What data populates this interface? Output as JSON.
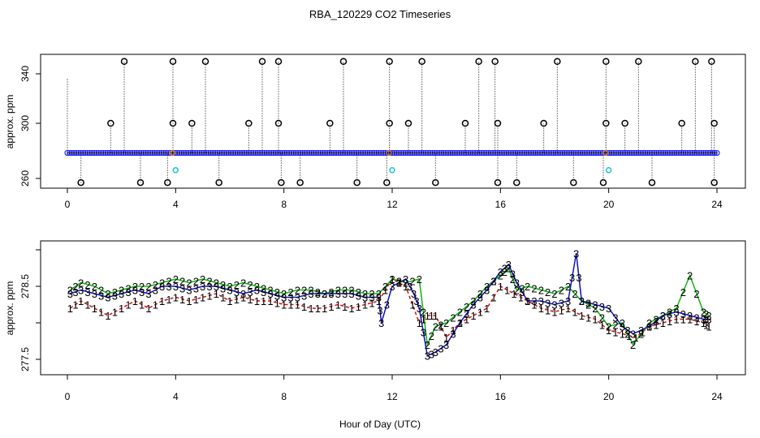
{
  "title": "RBA_120229  CO2 Timeseries",
  "xlabel": "Hour of Day (UTC)",
  "colors": {
    "frame": "#000000",
    "circle_main": "#000000",
    "circle_fill_line": "#1f1fff",
    "circle_cyan": "#20c8d0",
    "series1": "#d01010",
    "series2": "#10b010",
    "series3": "#1010c0",
    "stem": "#000000",
    "orange_mark": "#e08000"
  },
  "chart_data": [
    {
      "type": "scatter",
      "ylabel": "approx. ppm",
      "xlim": [
        0,
        24
      ],
      "ylim": [
        255,
        350
      ],
      "x_ticks": [
        0,
        4,
        8,
        12,
        16,
        20,
        24
      ],
      "y_ticks": [
        260,
        300,
        340
      ],
      "baseline": 278.5,
      "points_high": [
        {
          "x": 2.1,
          "y": 350
        },
        {
          "x": 3.9,
          "y": 350
        },
        {
          "x": 5.1,
          "y": 350
        },
        {
          "x": 7.2,
          "y": 350
        },
        {
          "x": 7.8,
          "y": 350
        },
        {
          "x": 10.2,
          "y": 350
        },
        {
          "x": 11.9,
          "y": 350
        },
        {
          "x": 13.1,
          "y": 350
        },
        {
          "x": 15.2,
          "y": 350
        },
        {
          "x": 15.8,
          "y": 350
        },
        {
          "x": 18.1,
          "y": 350
        },
        {
          "x": 19.9,
          "y": 350
        },
        {
          "x": 21.1,
          "y": 350
        },
        {
          "x": 23.2,
          "y": 350
        },
        {
          "x": 23.8,
          "y": 350
        }
      ],
      "points_mid": [
        {
          "x": 1.6,
          "y": 300
        },
        {
          "x": 3.9,
          "y": 300
        },
        {
          "x": 4.6,
          "y": 300
        },
        {
          "x": 6.7,
          "y": 300
        },
        {
          "x": 7.8,
          "y": 300
        },
        {
          "x": 9.7,
          "y": 300
        },
        {
          "x": 11.9,
          "y": 300
        },
        {
          "x": 12.6,
          "y": 300
        },
        {
          "x": 14.7,
          "y": 300
        },
        {
          "x": 15.9,
          "y": 300
        },
        {
          "x": 17.6,
          "y": 300
        },
        {
          "x": 19.9,
          "y": 300
        },
        {
          "x": 20.6,
          "y": 300
        },
        {
          "x": 22.7,
          "y": 300
        },
        {
          "x": 23.9,
          "y": 300
        }
      ],
      "points_low": [
        {
          "x": 0.5,
          "y": 257
        },
        {
          "x": 2.7,
          "y": 257
        },
        {
          "x": 3.7,
          "y": 257
        },
        {
          "x": 5.6,
          "y": 257
        },
        {
          "x": 7.9,
          "y": 257
        },
        {
          "x": 8.6,
          "y": 257
        },
        {
          "x": 10.7,
          "y": 257
        },
        {
          "x": 11.8,
          "y": 257
        },
        {
          "x": 13.6,
          "y": 257
        },
        {
          "x": 15.9,
          "y": 257
        },
        {
          "x": 16.6,
          "y": 257
        },
        {
          "x": 18.7,
          "y": 257
        },
        {
          "x": 19.8,
          "y": 257
        },
        {
          "x": 21.6,
          "y": 257
        },
        {
          "x": 23.9,
          "y": 257
        }
      ],
      "points_cyan": [
        {
          "x": 4.0,
          "y": 266
        },
        {
          "x": 12.0,
          "y": 266
        },
        {
          "x": 20.0,
          "y": 266
        }
      ]
    },
    {
      "type": "line",
      "ylabel": "approx. ppm",
      "xlim": [
        0,
        24
      ],
      "ylim": [
        277.5,
        279.0
      ],
      "x_ticks": [
        0,
        4,
        8,
        12,
        16,
        20,
        24
      ],
      "y_ticks": [
        277.5,
        278.5
      ],
      "series": [
        {
          "name": "1",
          "x": [
            0.1,
            0.5,
            1.0,
            1.5,
            2.0,
            2.5,
            3.0,
            3.5,
            4.0,
            4.5,
            5.0,
            5.5,
            6.0,
            6.5,
            7.0,
            7.5,
            8.0,
            8.5,
            9.0,
            9.5,
            10.0,
            10.5,
            11.0,
            11.5,
            12.0,
            12.5,
            13.0,
            13.3,
            13.6,
            14.0,
            14.5,
            15.0,
            15.5,
            16.0,
            16.5,
            17.0,
            17.5,
            18.0,
            18.5,
            19.0,
            19.5,
            20.0,
            20.5,
            21.0,
            21.5,
            22.0,
            22.5,
            23.0,
            23.5,
            23.7
          ],
          "values": [
            278.2,
            278.3,
            278.2,
            278.1,
            278.2,
            278.3,
            278.2,
            278.3,
            278.35,
            278.3,
            278.35,
            278.4,
            278.3,
            278.35,
            278.3,
            278.3,
            278.25,
            278.25,
            278.2,
            278.2,
            278.25,
            278.2,
            278.25,
            278.3,
            278.6,
            278.5,
            278.0,
            278.1,
            278.1,
            277.8,
            278.0,
            278.1,
            278.2,
            278.5,
            278.4,
            278.3,
            278.2,
            278.15,
            278.2,
            278.1,
            278.05,
            277.9,
            277.85,
            277.8,
            277.95,
            278.0,
            278.05,
            278.05,
            278.0,
            277.95
          ]
        },
        {
          "name": "2",
          "x": [
            0.1,
            0.5,
            1.0,
            1.5,
            2.0,
            2.5,
            3.0,
            3.5,
            4.0,
            4.5,
            5.0,
            5.5,
            6.0,
            6.5,
            7.0,
            7.5,
            8.0,
            8.5,
            9.0,
            9.5,
            10.0,
            10.5,
            11.0,
            11.5,
            12.0,
            12.5,
            13.0,
            13.3,
            13.6,
            14.0,
            14.5,
            15.0,
            15.5,
            16.0,
            16.3,
            16.6,
            17.0,
            17.5,
            18.0,
            18.5,
            19.0,
            19.5,
            20.0,
            20.5,
            20.9,
            21.5,
            22.0,
            22.5,
            23.0,
            23.5,
            23.7
          ],
          "values": [
            278.45,
            278.55,
            278.5,
            278.4,
            278.45,
            278.5,
            278.5,
            278.55,
            278.6,
            278.55,
            278.6,
            278.55,
            278.5,
            278.55,
            278.5,
            278.45,
            278.4,
            278.45,
            278.45,
            278.4,
            278.45,
            278.45,
            278.4,
            278.4,
            278.6,
            278.55,
            278.6,
            277.7,
            277.95,
            278.0,
            278.15,
            278.3,
            278.5,
            278.65,
            278.75,
            278.45,
            278.5,
            278.45,
            278.4,
            278.5,
            278.3,
            278.2,
            277.95,
            278.0,
            277.7,
            278.0,
            278.1,
            278.2,
            278.65,
            278.15,
            278.1
          ]
        },
        {
          "name": "3",
          "x": [
            0.1,
            0.5,
            1.0,
            1.5,
            2.0,
            2.5,
            3.0,
            3.5,
            4.0,
            4.5,
            5.0,
            5.5,
            6.0,
            6.5,
            7.0,
            7.5,
            8.0,
            8.5,
            9.0,
            9.5,
            10.0,
            10.5,
            11.0,
            11.5,
            11.6,
            12.0,
            12.5,
            12.8,
            13.0,
            13.3,
            13.6,
            14.0,
            14.5,
            15.0,
            15.5,
            16.0,
            16.3,
            16.6,
            17.0,
            17.5,
            18.0,
            18.5,
            18.8,
            19.0,
            19.5,
            20.0,
            20.5,
            20.9,
            21.5,
            22.0,
            22.5,
            23.0,
            23.5,
            23.7
          ],
          "values": [
            278.4,
            278.45,
            278.4,
            278.35,
            278.4,
            278.45,
            278.4,
            278.5,
            278.5,
            278.45,
            278.5,
            278.5,
            278.45,
            278.4,
            278.45,
            278.4,
            278.35,
            278.35,
            278.4,
            278.4,
            278.4,
            278.4,
            278.35,
            278.35,
            278.0,
            278.5,
            278.6,
            278.4,
            278.2,
            277.55,
            277.6,
            277.7,
            278.0,
            278.25,
            278.45,
            278.7,
            278.8,
            278.55,
            278.3,
            278.3,
            278.25,
            278.3,
            278.95,
            278.3,
            278.25,
            278.2,
            277.95,
            277.85,
            277.95,
            278.1,
            278.15,
            278.1,
            278.05,
            278.05
          ]
        }
      ]
    }
  ]
}
